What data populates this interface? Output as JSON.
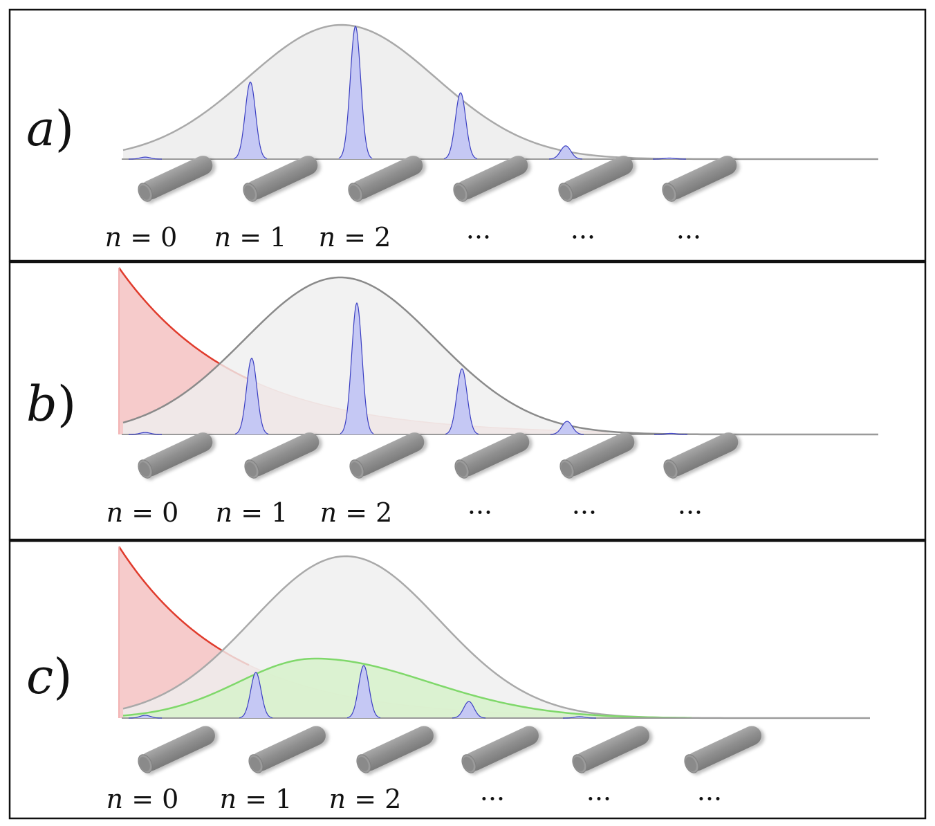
{
  "colors": {
    "envelope_fill": "#efefef",
    "envelope_line": "#a9a9a9",
    "peak_fill": "#c5c8f4",
    "peak_line": "#3a3ec2",
    "decay_fill": "#f5c2c2",
    "decay_line": "#e03b2c",
    "green_fill": "#d8f2cd",
    "green_line": "#7fd86a",
    "rod_color": "#8e8e8e",
    "border": "#111111"
  },
  "panels": [
    {
      "label": "a",
      "has_decay": false,
      "has_green": false,
      "site_labels": [
        {
          "var": "n",
          "rest": " = 0"
        },
        {
          "var": "n",
          "rest": " = 1"
        },
        {
          "var": "n",
          "rest": " = 2"
        },
        {
          "var": "",
          "rest": "···"
        },
        {
          "var": "",
          "rest": "···"
        },
        {
          "var": "",
          "rest": "···"
        }
      ]
    },
    {
      "label": "b",
      "has_decay": true,
      "has_green": false,
      "site_labels": [
        {
          "var": "n",
          "rest": " = 0"
        },
        {
          "var": "n",
          "rest": " = 1"
        },
        {
          "var": "n",
          "rest": " = 2"
        },
        {
          "var": "",
          "rest": "···"
        },
        {
          "var": "",
          "rest": "···"
        },
        {
          "var": "",
          "rest": "···"
        }
      ]
    },
    {
      "label": "c",
      "has_decay": true,
      "has_green": true,
      "site_labels": [
        {
          "var": "n",
          "rest": " = 0"
        },
        {
          "var": "n",
          "rest": " = 1"
        },
        {
          "var": "n",
          "rest": " = 2"
        },
        {
          "var": "",
          "rest": "···"
        },
        {
          "var": "",
          "rest": "···"
        },
        {
          "var": "",
          "rest": "···"
        }
      ]
    }
  ]
}
